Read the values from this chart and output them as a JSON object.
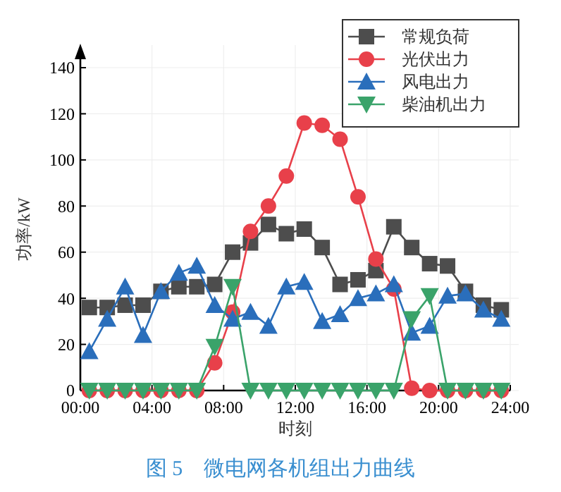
{
  "chart_data": {
    "type": "line",
    "title": "图 5　微电网各机组出力曲线",
    "xlabel": "时刻",
    "ylabel": "功率/kW",
    "x": [
      0.5,
      1.5,
      2.5,
      3.5,
      4.5,
      5.5,
      6.5,
      7.5,
      8.5,
      9.5,
      10.5,
      11.5,
      12.5,
      13.5,
      14.5,
      15.5,
      16.5,
      17.5,
      18.5,
      19.5,
      20.5,
      21.5,
      22.5,
      23.5
    ],
    "xlim": [
      0,
      24
    ],
    "xticks": [
      {
        "value": 0,
        "label": "00:00"
      },
      {
        "value": 4,
        "label": "04:00"
      },
      {
        "value": 8,
        "label": "08:00"
      },
      {
        "value": 12,
        "label": "12:00"
      },
      {
        "value": 16,
        "label": "16:00"
      },
      {
        "value": 20,
        "label": "20:00"
      },
      {
        "value": 24,
        "label": "24:00"
      }
    ],
    "ylim": [
      0,
      140
    ],
    "yticks": [
      0,
      20,
      40,
      60,
      80,
      100,
      120,
      140
    ],
    "grid": true,
    "legend": "top right",
    "series": [
      {
        "name": "常规负荷",
        "color": "#4d4d4d",
        "marker": "square",
        "values": [
          36,
          36,
          37,
          37,
          43,
          45,
          45,
          46,
          60,
          64,
          72,
          68,
          70,
          62,
          46,
          48,
          52,
          71,
          62,
          55,
          54,
          43,
          37,
          35
        ]
      },
      {
        "name": "光伏出力",
        "color": "#e8404a",
        "marker": "circle",
        "values": [
          0,
          0,
          0,
          0,
          0,
          0,
          0,
          12,
          34,
          69,
          80,
          93,
          116,
          115,
          109,
          84,
          57,
          44,
          1,
          0,
          0,
          0,
          0,
          0
        ]
      },
      {
        "name": "风电出力",
        "color": "#2a6ebb",
        "marker": "triangle",
        "values": [
          17,
          31,
          45,
          24,
          43,
          51,
          54,
          37,
          31,
          34,
          28,
          45,
          47,
          30,
          33,
          40,
          42,
          46,
          25,
          28,
          41,
          42,
          35,
          31
        ]
      },
      {
        "name": "柴油机出力",
        "color": "#3aa36a",
        "marker": "triangle-down",
        "values": [
          0,
          0,
          0,
          0,
          0,
          0,
          0,
          19,
          45,
          0,
          0,
          0,
          0,
          0,
          0,
          0,
          0,
          0,
          31,
          41,
          0,
          0,
          0,
          0
        ]
      }
    ]
  }
}
